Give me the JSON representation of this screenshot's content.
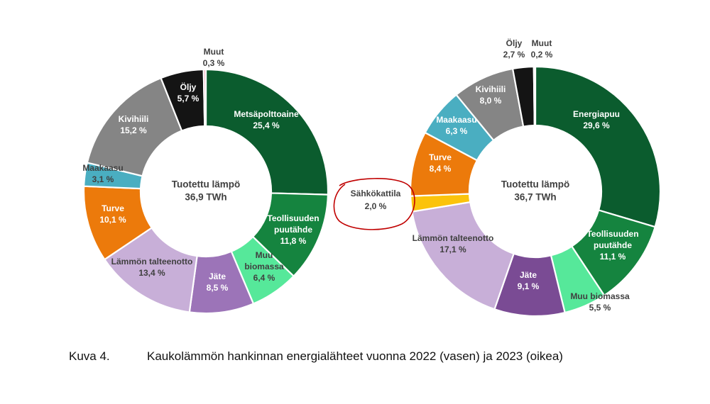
{
  "caption": {
    "number": "Kuva 4.",
    "text": "Kaukolämmön hankinnan energialähteet vuonna 2022 (vasen) ja 2023 (oikea)"
  },
  "callout": {
    "label": "Sähkökattila",
    "value": "2,0 %",
    "circle_color": "#c00000"
  },
  "chart_data": [
    {
      "type": "pie",
      "donut": true,
      "year": "2022",
      "center_title": "Tuotettu lämpö",
      "center_value": "36,9 TWh",
      "slices": [
        {
          "name": "Metsäpolttoaine",
          "value": 25.4,
          "label": "Metsäpolttoaine",
          "value_text": "25,4 %",
          "color": "#0b5c2e",
          "label_color": "#ffffff"
        },
        {
          "name": "Teollisuuden puutähde",
          "value": 11.8,
          "label": "Teollisuuden\npuutähde",
          "value_text": "11,8 %",
          "color": "#15843f",
          "label_color": "#ffffff"
        },
        {
          "name": "Muu biomassa",
          "value": 6.4,
          "label": "Muu\nbiomassa",
          "value_text": "6,4 %",
          "color": "#56e89a",
          "label_color": "#404040"
        },
        {
          "name": "Jäte",
          "value": 8.5,
          "label": "Jäte",
          "value_text": "8,5 %",
          "color": "#9c74b8",
          "label_color": "#ffffff"
        },
        {
          "name": "Lämmön talteenotto",
          "value": 13.4,
          "label": "Lämmön talteenotto",
          "value_text": "13,4 %",
          "color": "#c8afd8",
          "label_color": "#404040"
        },
        {
          "name": "Turve",
          "value": 10.1,
          "label": "Turve",
          "value_text": "10,1 %",
          "color": "#ec7a0b",
          "label_color": "#ffffff"
        },
        {
          "name": "Maakaasu",
          "value": 3.1,
          "label": "Maakaasu",
          "value_text": "3,1 %",
          "color": "#4aaec1",
          "label_color": "#404040"
        },
        {
          "name": "Kivihiili",
          "value": 15.2,
          "label": "Kivihiili",
          "value_text": "15,2 %",
          "color": "#858585",
          "label_color": "#ffffff"
        },
        {
          "name": "Öljy",
          "value": 5.7,
          "label": "Öljy",
          "value_text": "5,7 %",
          "color": "#141414",
          "label_color": "#ffffff"
        },
        {
          "name": "Muut",
          "value": 0.3,
          "label": "Muut",
          "value_text": "0,3 %",
          "color": "#f0a2b4",
          "label_color": "#404040"
        }
      ]
    },
    {
      "type": "pie",
      "donut": true,
      "year": "2023",
      "center_title": "Tuotettu lämpö",
      "center_value": "36,7 TWh",
      "slices": [
        {
          "name": "Energiapuu",
          "value": 29.6,
          "label": "Energiapuu",
          "value_text": "29,6 %",
          "color": "#0b5c2e",
          "label_color": "#ffffff"
        },
        {
          "name": "Teollisuuden puutähde",
          "value": 11.1,
          "label": "Teollisuuden\npuutähde",
          "value_text": "11,1 %",
          "color": "#15843f",
          "label_color": "#ffffff"
        },
        {
          "name": "Muu biomassa",
          "value": 5.5,
          "label": "Muu biomassa",
          "value_text": "5,5 %",
          "color": "#56e89a",
          "label_color": "#404040"
        },
        {
          "name": "Jäte",
          "value": 9.1,
          "label": "Jäte",
          "value_text": "9,1 %",
          "color": "#7a4b94",
          "label_color": "#ffffff"
        },
        {
          "name": "Lämmön talteenotto",
          "value": 17.1,
          "label": "Lämmön talteenotto",
          "value_text": "17,1 %",
          "color": "#c8afd8",
          "label_color": "#404040"
        },
        {
          "name": "Sähkökattila",
          "value": 2.0,
          "label": "",
          "value_text": "",
          "color": "#fbc30c",
          "label_color": "#404040"
        },
        {
          "name": "Turve",
          "value": 8.4,
          "label": "Turve",
          "value_text": "8,4 %",
          "color": "#ec7a0b",
          "label_color": "#ffffff"
        },
        {
          "name": "Maakaasu",
          "value": 6.3,
          "label": "Maakaasu",
          "value_text": "6,3 %",
          "color": "#4aaec1",
          "label_color": "#ffffff"
        },
        {
          "name": "Kivihiili",
          "value": 8.0,
          "label": "Kivihiili",
          "value_text": "8,0 %",
          "color": "#858585",
          "label_color": "#ffffff"
        },
        {
          "name": "Öljy",
          "value": 2.7,
          "label": "Öljy",
          "value_text": "2,7 %",
          "color": "#141414",
          "label_color": "#404040"
        },
        {
          "name": "Muut",
          "value": 0.2,
          "label": "Muut",
          "value_text": "0,2 %",
          "color": "#f0a2b4",
          "label_color": "#404040"
        }
      ]
    }
  ]
}
